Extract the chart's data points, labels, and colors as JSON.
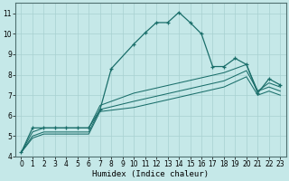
{
  "xlabel": "Humidex (Indice chaleur)",
  "background_color": "#c5e8e8",
  "grid_color": "#a8d0d0",
  "line_color": "#1a6e6a",
  "xlim": [
    -0.5,
    23.5
  ],
  "ylim": [
    4,
    11.5
  ],
  "xticks": [
    0,
    1,
    2,
    3,
    4,
    5,
    6,
    7,
    8,
    9,
    10,
    11,
    12,
    13,
    14,
    15,
    16,
    17,
    18,
    19,
    20,
    21,
    22,
    23
  ],
  "yticks": [
    4,
    5,
    6,
    7,
    8,
    9,
    10,
    11
  ],
  "series": [
    {
      "x": [
        0,
        1,
        2,
        3,
        4,
        5,
        6,
        7,
        8,
        10,
        11,
        12,
        13,
        14,
        15,
        16,
        17,
        18,
        19,
        20,
        21,
        22,
        23
      ],
      "y": [
        4.2,
        5.4,
        5.4,
        5.4,
        5.4,
        5.4,
        5.4,
        6.3,
        8.3,
        9.5,
        10.05,
        10.55,
        10.55,
        11.05,
        10.55,
        10.0,
        8.4,
        8.4,
        8.8,
        8.5,
        7.1,
        7.8,
        7.5
      ],
      "marker": "+"
    },
    {
      "x": [
        0,
        1,
        2,
        3,
        4,
        5,
        6,
        7,
        10,
        14,
        18,
        20,
        21,
        22,
        23
      ],
      "y": [
        4.2,
        5.2,
        5.4,
        5.4,
        5.4,
        5.4,
        5.4,
        6.5,
        7.1,
        7.6,
        8.1,
        8.5,
        7.2,
        7.6,
        7.4
      ],
      "marker": null
    },
    {
      "x": [
        0,
        1,
        2,
        3,
        4,
        5,
        6,
        7,
        10,
        14,
        18,
        20,
        21,
        22,
        23
      ],
      "y": [
        4.2,
        5.0,
        5.2,
        5.2,
        5.2,
        5.2,
        5.2,
        6.3,
        6.7,
        7.2,
        7.7,
        8.2,
        7.2,
        7.4,
        7.2
      ],
      "marker": null
    },
    {
      "x": [
        0,
        1,
        2,
        3,
        4,
        5,
        6,
        7,
        10,
        14,
        18,
        20,
        21,
        22,
        23
      ],
      "y": [
        4.2,
        4.9,
        5.1,
        5.1,
        5.1,
        5.1,
        5.1,
        6.2,
        6.4,
        6.9,
        7.4,
        7.9,
        7.0,
        7.2,
        7.0
      ],
      "marker": null
    }
  ]
}
